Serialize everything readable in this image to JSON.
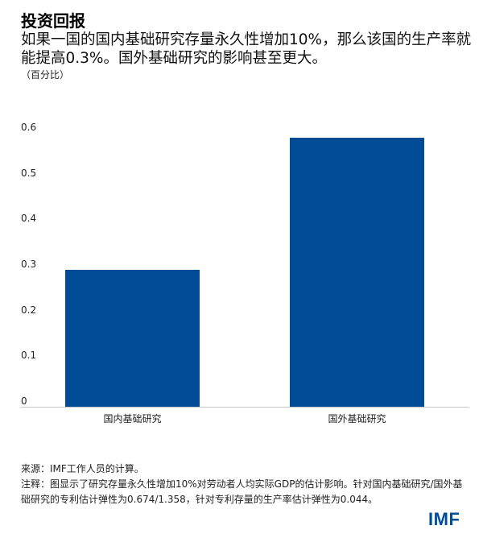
{
  "header": {
    "title": "投资回报",
    "subtitle": "如果一国的国内基础研究存量永久性增加10%，那么该国的生产率就能提高0.3%。国外基础研究的影响甚至更大。",
    "unit": "（百分比）"
  },
  "colors": {
    "bar": "#004C97",
    "axis": "#c8c8c8",
    "logo": "#004C97"
  },
  "chart_data": {
    "type": "bar",
    "title": "投资回报",
    "subtitle": "如果一国的国内基础研究存量永久性增加10%，那么该国的生产率就能提高0.3%。国外基础研究的影响甚至更大。",
    "xlabel": "",
    "ylabel": "（百分比）",
    "categories": [
      "国内基础研究",
      "国外基础研究"
    ],
    "values": [
      0.3,
      0.59
    ],
    "ylim": [
      0,
      0.6
    ],
    "yticks": [
      "0",
      "0.1",
      "0.2",
      "0.3",
      "0.4",
      "0.5",
      "0.6"
    ],
    "grid": false,
    "legend": null
  },
  "footer": {
    "source": "来源：IMF工作人员的计算。",
    "note": "注释：图显示了研究存量永久性增加10%对劳动者人均实际GDP的估计影响。针对国内基础研究/国外基础研究的专利估计弹性为0.674/1.358，针对专利存量的生产率估计弹性为0.044。"
  },
  "logo": {
    "text": "IMF"
  }
}
